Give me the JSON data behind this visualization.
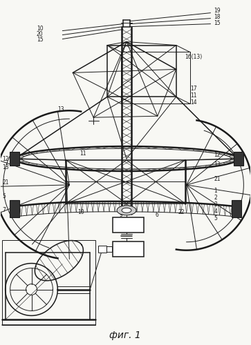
{
  "background": "#f8f8f4",
  "lc": "#1a1a1a",
  "fig_size": [
    3.63,
    5.0
  ],
  "dpi": 100,
  "caption": "фиг. 1"
}
